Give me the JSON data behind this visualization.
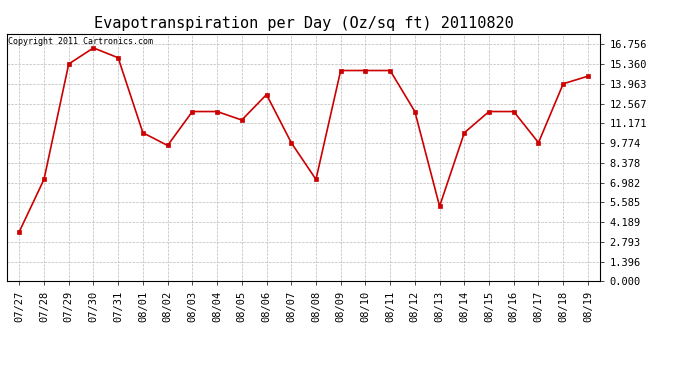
{
  "title": "Evapotranspiration per Day (Oz/sq ft) 20110820",
  "copyright": "Copyright 2011 Cartronics.com",
  "x_labels": [
    "07/27",
    "07/28",
    "07/29",
    "07/30",
    "07/31",
    "08/01",
    "08/02",
    "08/03",
    "08/04",
    "08/05",
    "08/06",
    "08/07",
    "08/08",
    "08/09",
    "08/10",
    "08/11",
    "08/12",
    "08/13",
    "08/14",
    "08/15",
    "08/16",
    "08/17",
    "08/18",
    "08/19"
  ],
  "y_values": [
    3.5,
    7.2,
    15.36,
    16.5,
    15.8,
    10.5,
    9.6,
    12.0,
    12.0,
    11.4,
    13.2,
    9.8,
    7.2,
    14.9,
    14.9,
    14.9,
    12.0,
    5.3,
    10.5,
    12.0,
    12.0,
    9.8,
    13.963,
    14.5
  ],
  "line_color": "#cc0000",
  "marker": "s",
  "marker_size": 2.5,
  "bg_color": "#ffffff",
  "grid_color": "#bbbbbb",
  "yticks": [
    0.0,
    1.396,
    2.793,
    4.189,
    5.585,
    6.982,
    8.378,
    9.774,
    11.171,
    12.567,
    13.963,
    15.36,
    16.756
  ],
  "ylim": [
    0,
    17.5
  ],
  "title_fontsize": 11,
  "copyright_fontsize": 6,
  "tick_fontsize": 7.5
}
